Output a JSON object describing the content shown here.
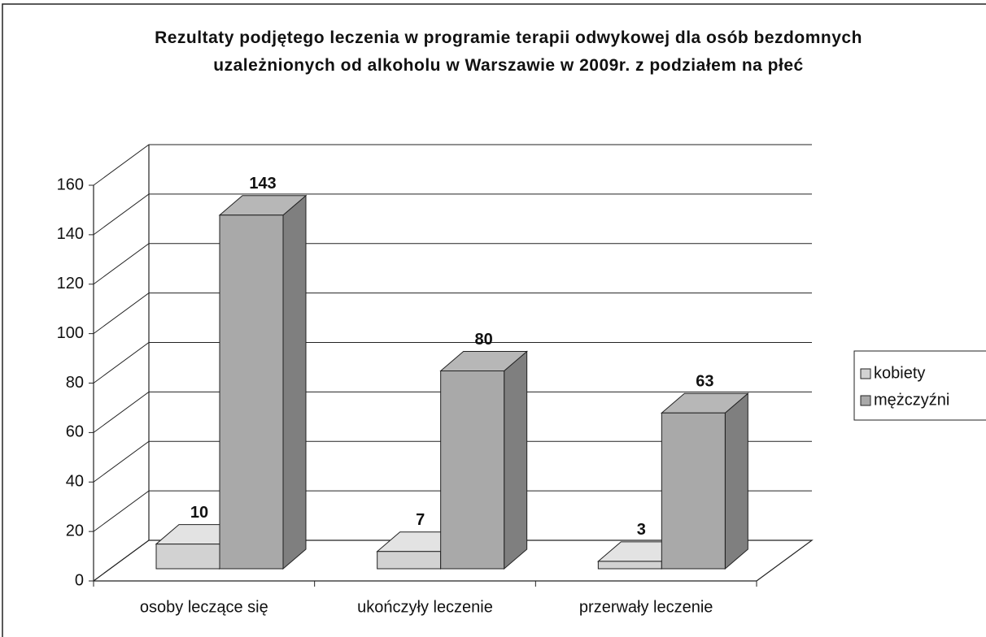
{
  "chart_data": {
    "type": "bar3d",
    "title": "Rezultaty podjętego leczenia w programie terapii odwykowej dla osób bezdomnych uzależnionych od alkoholu w Warszawie w 2009r. z podziałem na płeć",
    "categories": [
      "osoby leczące się",
      "ukończyły leczenie",
      "przerwały leczenie"
    ],
    "series": [
      {
        "name": "kobiety",
        "color": "#d2d2d2",
        "values": [
          10,
          7,
          3
        ]
      },
      {
        "name": "mężczyźni",
        "color": "#a9a9a9",
        "values": [
          143,
          80,
          63
        ]
      }
    ],
    "ylim": [
      0,
      160
    ],
    "yticks": [
      0,
      20,
      40,
      60,
      80,
      100,
      120,
      140,
      160
    ],
    "grid": true,
    "legend": "right"
  }
}
